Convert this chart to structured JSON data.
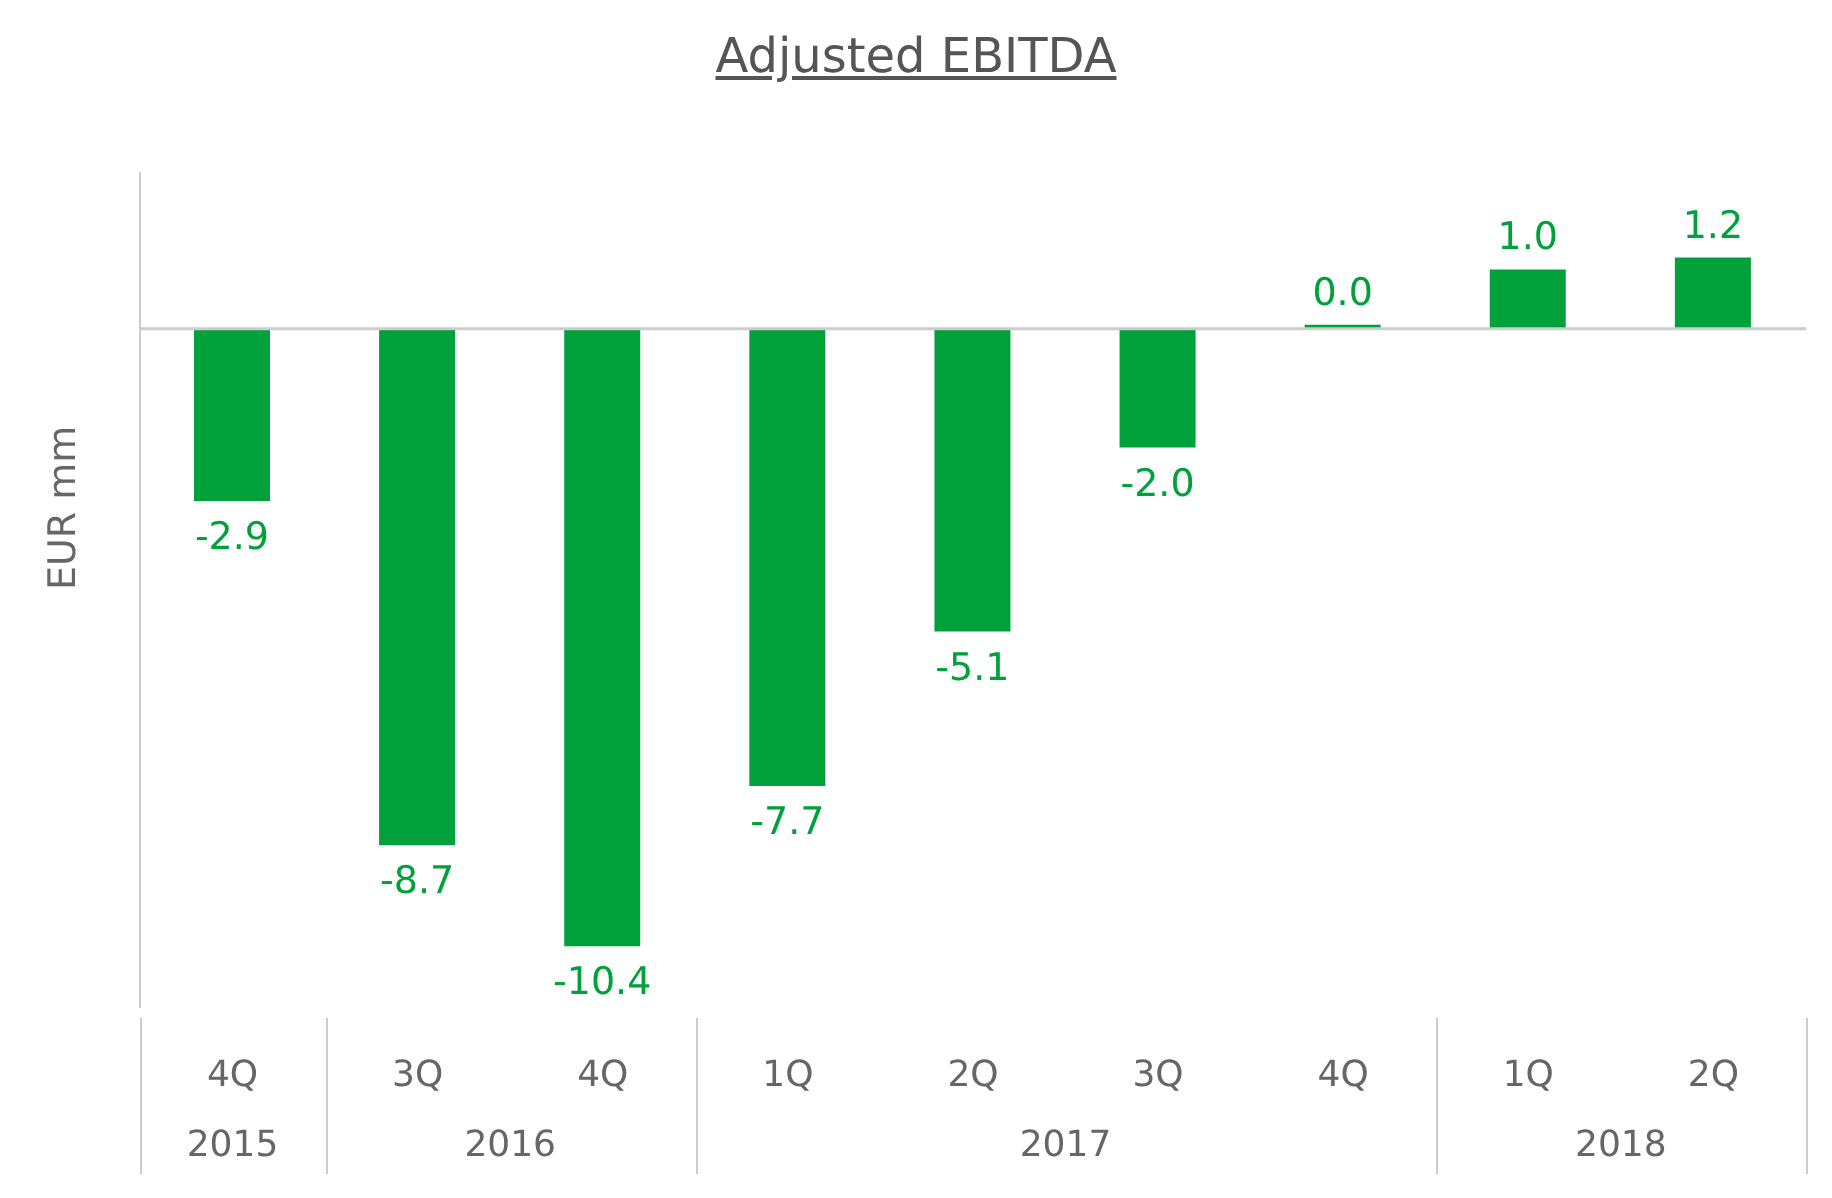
{
  "chart_data": {
    "type": "bar",
    "title": "Adjusted EBITDA",
    "ylabel": "EUR mm",
    "categories": [
      "4Q",
      "3Q",
      "4Q",
      "1Q",
      "2Q",
      "3Q",
      "4Q",
      "1Q",
      "2Q"
    ],
    "values": [
      -2.9,
      -8.7,
      -10.4,
      -7.7,
      -5.1,
      -2.0,
      0.0,
      1.0,
      1.2
    ],
    "value_labels": [
      "-2.9",
      "-8.7",
      "-10.4",
      "-7.7",
      "-5.1",
      "-2.0",
      "0.0",
      "1.0",
      "1.2"
    ],
    "color": "#00a13a",
    "annotations": [
      "2015",
      "2016",
      "2017",
      "2018"
    ]
  }
}
